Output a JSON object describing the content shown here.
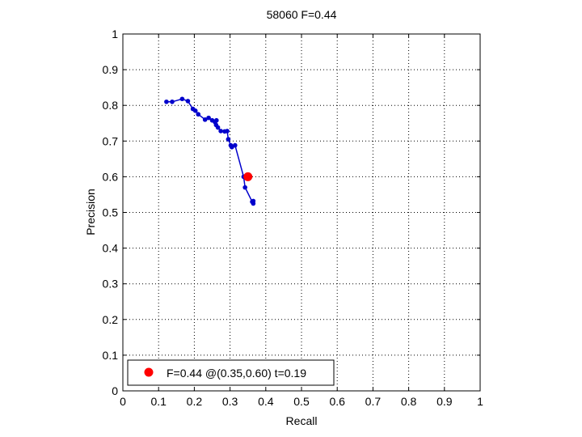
{
  "chart_data": {
    "type": "line",
    "title": "58060 F=0.44",
    "xlabel": "Recall",
    "ylabel": "Precision",
    "xlim": [
      0,
      1
    ],
    "ylim": [
      0,
      1
    ],
    "xticks": [
      "0",
      "0.1",
      "0.2",
      "0.3",
      "0.4",
      "0.5",
      "0.6",
      "0.7",
      "0.8",
      "0.9",
      "1"
    ],
    "yticks": [
      "0",
      "0.1",
      "0.2",
      "0.3",
      "0.4",
      "0.5",
      "0.6",
      "0.7",
      "0.8",
      "0.9",
      "1"
    ],
    "grid": true,
    "legend_position": "bottom-left",
    "series": [
      {
        "color": "#0000cc",
        "points": [
          [
            0.365,
            0.525
          ],
          [
            0.365,
            0.532
          ],
          [
            0.362,
            0.53
          ],
          [
            0.342,
            0.57
          ],
          [
            0.338,
            0.6
          ],
          [
            0.314,
            0.688
          ],
          [
            0.305,
            0.683
          ],
          [
            0.302,
            0.688
          ],
          [
            0.295,
            0.705
          ],
          [
            0.292,
            0.728
          ],
          [
            0.285,
            0.727
          ],
          [
            0.274,
            0.728
          ],
          [
            0.266,
            0.738
          ],
          [
            0.261,
            0.745
          ],
          [
            0.258,
            0.753
          ],
          [
            0.262,
            0.758
          ],
          [
            0.25,
            0.758
          ],
          [
            0.24,
            0.765
          ],
          [
            0.23,
            0.76
          ],
          [
            0.211,
            0.775
          ],
          [
            0.203,
            0.785
          ],
          [
            0.196,
            0.79
          ],
          [
            0.182,
            0.812
          ],
          [
            0.166,
            0.818
          ],
          [
            0.138,
            0.81
          ],
          [
            0.122,
            0.81
          ]
        ]
      }
    ],
    "highlight": {
      "recall": 0.35,
      "precision": 0.6,
      "color": "#ff0000",
      "legend_label": "F=0.44 @(0.35,0.60) t=0.19"
    }
  }
}
